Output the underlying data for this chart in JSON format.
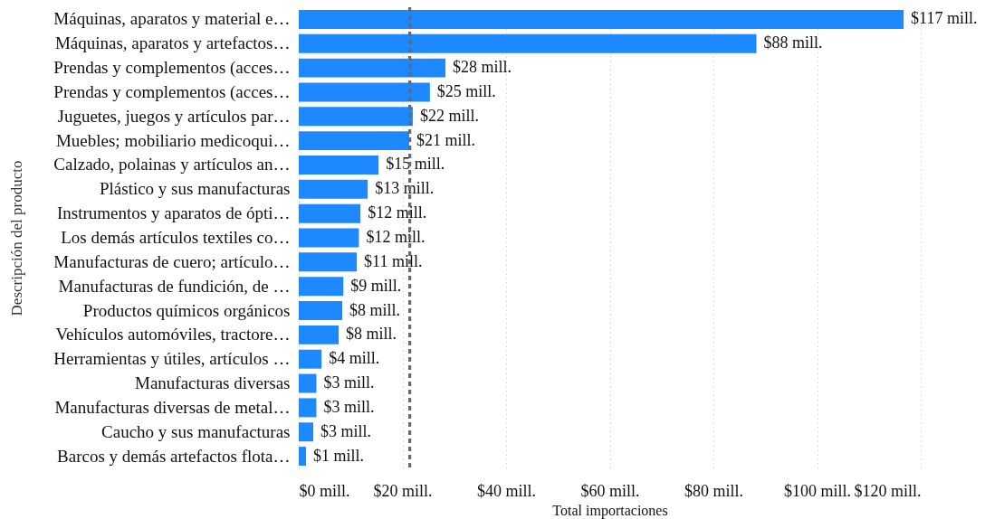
{
  "chart_data": {
    "type": "bar",
    "orientation": "horizontal",
    "xlabel": "Total importaciones",
    "ylabel": "Descripción del producto",
    "categories": [
      "Máquinas, aparatos y material e…",
      "Máquinas, aparatos y artefactos…",
      "Prendas y complementos (acces…",
      "Prendas y complementos (acces…",
      "Juguetes, juegos y artículos par…",
      "Muebles; mobiliario medicoqui…",
      "Calzado, polainas y artículos an…",
      "Plástico y sus manufacturas",
      "Instrumentos y aparatos de ópti…",
      "Los demás artículos textiles co…",
      "Manufacturas de cuero; artículo…",
      "Manufacturas de fundición, de …",
      "Productos químicos orgánicos",
      "Vehículos automóviles, tractore…",
      "Herramientas y útiles, artículos …",
      "Manufacturas diversas",
      "Manufacturas diversas de metal…",
      "Caucho y sus manufacturas",
      "Barcos y demás artefactos flota…"
    ],
    "values": [
      116.7,
      88.3,
      28.3,
      25.3,
      22,
      21.3,
      15.4,
      13.3,
      11.9,
      11.6,
      11.2,
      8.6,
      8.4,
      7.7,
      4.4,
      3.4,
      3.4,
      2.8,
      1.4
    ],
    "value_labels": [
      "$117 mill.",
      "$88 mill.",
      "$28 mill.",
      "$25 mill.",
      "$22 mill.",
      "$21 mill.",
      "$15 mill.",
      "$13 mill.",
      "$12 mill.",
      "$12 mill.",
      "$11 mill.",
      "$9 mill.",
      "$8 mill.",
      "$8 mill.",
      "$4 mill.",
      "$3 mill.",
      "$3 mill.",
      "$3 mill.",
      "$1 mill."
    ],
    "color": "#1e88ff",
    "xlim": [
      0,
      120
    ],
    "xticks": [
      {
        "value": 0,
        "label": "$0 mill."
      },
      {
        "value": 20,
        "label": "$20 mill."
      },
      {
        "value": 40,
        "label": "$40 mill."
      },
      {
        "value": 60,
        "label": "$60 mill."
      },
      {
        "value": 80,
        "label": "$80 mill."
      },
      {
        "value": 100,
        "label": "$100 mill."
      },
      {
        "value": 120,
        "label": "$120 mill."
      }
    ],
    "grid": "x",
    "ref_lines": [
      {
        "axis": "x",
        "value": 21.4,
        "color": "#6b6b6b",
        "line_style": "dashed"
      }
    ]
  }
}
